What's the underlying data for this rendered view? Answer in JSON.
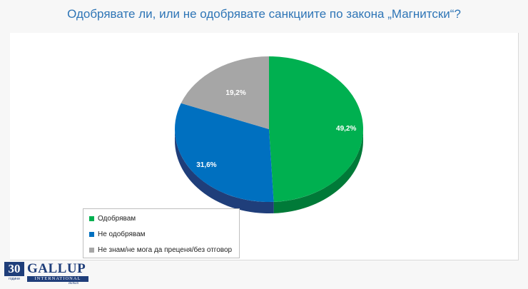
{
  "chart_data": {
    "type": "pie",
    "title": "Одобрявате ли, или не одобрявате санкциите по закона „Магнитски“?",
    "slices": [
      {
        "label": "Одобрявам",
        "value": 49.2,
        "display": "49,2%",
        "color": "#00b050",
        "side": "#007a38"
      },
      {
        "label": "Не одобрявам",
        "value": 31.6,
        "display": "31,6%",
        "color": "#0070c0",
        "side": "#1f3e7a"
      },
      {
        "label": "Не знам/не мога да преценя/без отговор",
        "value": 19.2,
        "display": "19,2%",
        "color": "#a6a6a6",
        "side": "#7f7f7f"
      }
    ],
    "legend_position": "bottom-left"
  },
  "logo": {
    "number": "30",
    "years": "години",
    "name": "GALLUP",
    "band": "INTERNATIONAL",
    "sub": "Balkan"
  }
}
